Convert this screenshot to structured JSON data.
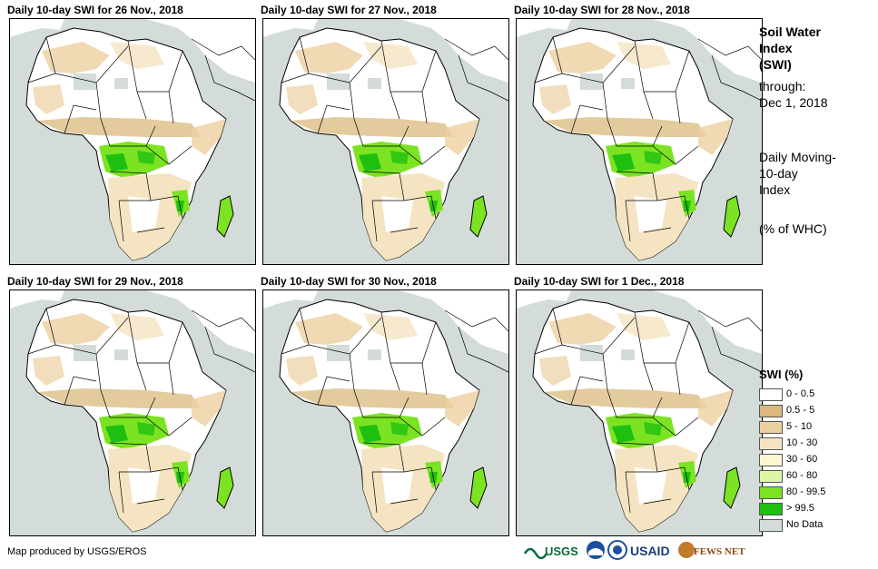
{
  "panels": [
    {
      "title": "Daily 10-day SWI for 26 Nov., 2018"
    },
    {
      "title": "Daily 10-day SWI for 27 Nov., 2018"
    },
    {
      "title": "Daily 10-day SWI for 28 Nov., 2018"
    },
    {
      "title": "Daily 10-day SWI for 29 Nov., 2018"
    },
    {
      "title": "Daily 10-day SWI for 30 Nov., 2018"
    },
    {
      "title": "Daily 10-day SWI for 1 Dec., 2018"
    }
  ],
  "side": {
    "title_line1": "Soil Water",
    "title_line2": "Index",
    "title_line3": "(SWI)",
    "through_label": "through:",
    "through_date": "Dec 1, 2018",
    "desc_line1": "Daily Moving-",
    "desc_line2": "10-day",
    "desc_line3": "Index",
    "unit": "(% of WHC)"
  },
  "legend": {
    "title": "SWI (%)",
    "items": [
      {
        "label": "0 - 0.5",
        "color": "#ffffff"
      },
      {
        "label": "0.5 - 5",
        "color": "#d9b97e"
      },
      {
        "label": "5 - 10",
        "color": "#ecd0a0"
      },
      {
        "label": "10 - 30",
        "color": "#f5e4c2"
      },
      {
        "label": "30 - 60",
        "color": "#fbf8d2"
      },
      {
        "label": "60 - 80",
        "color": "#def7a6"
      },
      {
        "label": "80 - 99.5",
        "color": "#7be322"
      },
      {
        "label": "> 99.5",
        "color": "#1fbf10"
      },
      {
        "label": "No Data",
        "color": "#d3dcd8"
      }
    ]
  },
  "credit": "Map produced by USGS/EROS",
  "logos": {
    "usgs": "USGS",
    "usaid": "USAID",
    "fews": "FEWS NET"
  }
}
